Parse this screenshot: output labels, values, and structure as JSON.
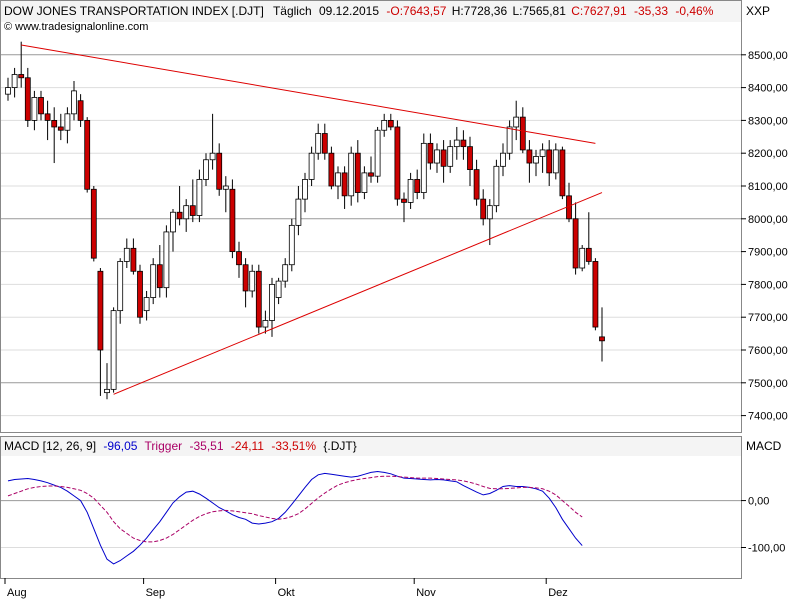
{
  "header": {
    "title": "DOW JONES TRANSPORTATION INDEX [.DJT]",
    "period": "Täglich",
    "date": "09.12.2015",
    "open": "-O:7643,57",
    "high": "H:7728,36",
    "low": "L:7565,81",
    "close": "C:7627,91",
    "change": "-35,33",
    "change_pct": "-0,46%",
    "right_label": "XXP",
    "watermark": "© www.tradesignalonline.com"
  },
  "macd_header": {
    "name": "MACD [12, 26, 9]",
    "macd_value": "-96,05",
    "trigger_label": "Trigger",
    "trigger_value": "-35,51",
    "diff": "-24,11",
    "diff_pct": "-33,51%",
    "symbol": "{.DJT}",
    "right_label": "MACD"
  },
  "colors": {
    "up": "#ffffff",
    "down": "#cc0000",
    "wick": "#000000",
    "trend": "#dd0000",
    "macd": "#0000cc",
    "trigger": "#aa0066",
    "negative": "#cc0000",
    "grid": "#cccccc"
  },
  "chart_data": [
    {
      "type": "candlestick",
      "title": "DOW JONES TRANSPORTATION INDEX [.DJT]",
      "ylim": [
        7350,
        8600
      ],
      "yticks": [
        "8500,00",
        "8400,00",
        "8300,00",
        "8200,00",
        "8100,00",
        "8000,00",
        "7900,00",
        "7800,00",
        "7700,00",
        "7600,00",
        "7500,00",
        "7400,00"
      ],
      "ytick_values": [
        8500,
        8400,
        8300,
        8200,
        8100,
        8000,
        7900,
        7800,
        7700,
        7600,
        7500,
        7400
      ],
      "xticks": [
        "Aug",
        "Sep",
        "Okt",
        "Nov",
        "Dez"
      ],
      "xtick_index": [
        0,
        21,
        41,
        62,
        82
      ],
      "candles": [
        {
          "o": 8380,
          "h": 8430,
          "l": 8360,
          "c": 8400
        },
        {
          "o": 8400,
          "h": 8460,
          "l": 8370,
          "c": 8440
        },
        {
          "o": 8440,
          "h": 8540,
          "l": 8400,
          "c": 8430
        },
        {
          "o": 8430,
          "h": 8460,
          "l": 8280,
          "c": 8300
        },
        {
          "o": 8300,
          "h": 8390,
          "l": 8270,
          "c": 8370
        },
        {
          "o": 8370,
          "h": 8390,
          "l": 8300,
          "c": 8320
        },
        {
          "o": 8320,
          "h": 8360,
          "l": 8240,
          "c": 8300
        },
        {
          "o": 8300,
          "h": 8340,
          "l": 8170,
          "c": 8280
        },
        {
          "o": 8280,
          "h": 8320,
          "l": 8240,
          "c": 8270
        },
        {
          "o": 8270,
          "h": 8340,
          "l": 8230,
          "c": 8320
        },
        {
          "o": 8320,
          "h": 8420,
          "l": 8300,
          "c": 8390
        },
        {
          "o": 8360,
          "h": 8380,
          "l": 8280,
          "c": 8300
        },
        {
          "o": 8300,
          "h": 8310,
          "l": 8080,
          "c": 8090
        },
        {
          "o": 8090,
          "h": 8100,
          "l": 7870,
          "c": 7880
        },
        {
          "o": 7840,
          "h": 7850,
          "l": 7460,
          "c": 7600
        },
        {
          "o": 7470,
          "h": 7560,
          "l": 7450,
          "c": 7480
        },
        {
          "o": 7480,
          "h": 7730,
          "l": 7470,
          "c": 7720
        },
        {
          "o": 7720,
          "h": 7880,
          "l": 7680,
          "c": 7870
        },
        {
          "o": 7870,
          "h": 7940,
          "l": 7850,
          "c": 7910
        },
        {
          "o": 7910,
          "h": 7940,
          "l": 7830,
          "c": 7840
        },
        {
          "o": 7840,
          "h": 7860,
          "l": 7680,
          "c": 7700
        },
        {
          "o": 7720,
          "h": 7780,
          "l": 7690,
          "c": 7760
        },
        {
          "o": 7760,
          "h": 7880,
          "l": 7740,
          "c": 7860
        },
        {
          "o": 7860,
          "h": 7920,
          "l": 7760,
          "c": 7790
        },
        {
          "o": 7790,
          "h": 7980,
          "l": 7760,
          "c": 7960
        },
        {
          "o": 7960,
          "h": 8030,
          "l": 7900,
          "c": 8020
        },
        {
          "o": 8020,
          "h": 8100,
          "l": 7980,
          "c": 8000
        },
        {
          "o": 8000,
          "h": 8060,
          "l": 7960,
          "c": 8040
        },
        {
          "o": 8040,
          "h": 8120,
          "l": 7990,
          "c": 8010
        },
        {
          "o": 8010,
          "h": 8150,
          "l": 7990,
          "c": 8120
        },
        {
          "o": 8120,
          "h": 8200,
          "l": 8100,
          "c": 8180
        },
        {
          "o": 8180,
          "h": 8320,
          "l": 8150,
          "c": 8200
        },
        {
          "o": 8200,
          "h": 8230,
          "l": 8070,
          "c": 8090
        },
        {
          "o": 8090,
          "h": 8130,
          "l": 8020,
          "c": 8100
        },
        {
          "o": 8090,
          "h": 8120,
          "l": 7880,
          "c": 7900
        },
        {
          "o": 7900,
          "h": 7930,
          "l": 7820,
          "c": 7860
        },
        {
          "o": 7860,
          "h": 7880,
          "l": 7730,
          "c": 7780
        },
        {
          "o": 7780,
          "h": 7860,
          "l": 7760,
          "c": 7840
        },
        {
          "o": 7840,
          "h": 7860,
          "l": 7650,
          "c": 7670
        },
        {
          "o": 7670,
          "h": 7720,
          "l": 7650,
          "c": 7690
        },
        {
          "o": 7690,
          "h": 7820,
          "l": 7640,
          "c": 7800
        },
        {
          "o": 7760,
          "h": 7820,
          "l": 7740,
          "c": 7810
        },
        {
          "o": 7810,
          "h": 7880,
          "l": 7790,
          "c": 7860
        },
        {
          "o": 7860,
          "h": 8000,
          "l": 7840,
          "c": 7980
        },
        {
          "o": 7980,
          "h": 8100,
          "l": 7950,
          "c": 8060
        },
        {
          "o": 8060,
          "h": 8140,
          "l": 8020,
          "c": 8120
        },
        {
          "o": 8120,
          "h": 8220,
          "l": 8100,
          "c": 8200
        },
        {
          "o": 8200,
          "h": 8290,
          "l": 8180,
          "c": 8260
        },
        {
          "o": 8260,
          "h": 8290,
          "l": 8180,
          "c": 8200
        },
        {
          "o": 8200,
          "h": 8220,
          "l": 8090,
          "c": 8100
        },
        {
          "o": 8100,
          "h": 8160,
          "l": 8060,
          "c": 8140
        },
        {
          "o": 8140,
          "h": 8160,
          "l": 8030,
          "c": 8070
        },
        {
          "o": 8070,
          "h": 8220,
          "l": 8040,
          "c": 8200
        },
        {
          "o": 8200,
          "h": 8240,
          "l": 8050,
          "c": 8080
        },
        {
          "o": 8080,
          "h": 8160,
          "l": 8060,
          "c": 8140
        },
        {
          "o": 8140,
          "h": 8190,
          "l": 8110,
          "c": 8130
        },
        {
          "o": 8130,
          "h": 8280,
          "l": 8110,
          "c": 8270
        },
        {
          "o": 8270,
          "h": 8320,
          "l": 8250,
          "c": 8300
        },
        {
          "o": 8300,
          "h": 8320,
          "l": 8270,
          "c": 8280
        },
        {
          "o": 8280,
          "h": 8300,
          "l": 8040,
          "c": 8060
        },
        {
          "o": 8060,
          "h": 8080,
          "l": 7990,
          "c": 8050
        },
        {
          "o": 8050,
          "h": 8140,
          "l": 8030,
          "c": 8120
        },
        {
          "o": 8120,
          "h": 8150,
          "l": 8060,
          "c": 8080
        },
        {
          "o": 8080,
          "h": 8260,
          "l": 8060,
          "c": 8230
        },
        {
          "o": 8230,
          "h": 8260,
          "l": 8150,
          "c": 8170
        },
        {
          "o": 8170,
          "h": 8230,
          "l": 8140,
          "c": 8210
        },
        {
          "o": 8210,
          "h": 8240,
          "l": 8110,
          "c": 8160
        },
        {
          "o": 8160,
          "h": 8240,
          "l": 8140,
          "c": 8220
        },
        {
          "o": 8220,
          "h": 8280,
          "l": 8180,
          "c": 8240
        },
        {
          "o": 8240,
          "h": 8270,
          "l": 8180,
          "c": 8220
        },
        {
          "o": 8220,
          "h": 8250,
          "l": 8100,
          "c": 8150
        },
        {
          "o": 8150,
          "h": 8180,
          "l": 8040,
          "c": 8060
        },
        {
          "o": 8060,
          "h": 8090,
          "l": 7980,
          "c": 8000
        },
        {
          "o": 8000,
          "h": 8060,
          "l": 7920,
          "c": 8040
        },
        {
          "o": 8040,
          "h": 8180,
          "l": 8020,
          "c": 8160
        },
        {
          "o": 8160,
          "h": 8230,
          "l": 8130,
          "c": 8200
        },
        {
          "o": 8200,
          "h": 8300,
          "l": 8180,
          "c": 8280
        },
        {
          "o": 8280,
          "h": 8360,
          "l": 8240,
          "c": 8310
        },
        {
          "o": 8310,
          "h": 8340,
          "l": 8200,
          "c": 8210
        },
        {
          "o": 8210,
          "h": 8240,
          "l": 8110,
          "c": 8170
        },
        {
          "o": 8170,
          "h": 8210,
          "l": 8130,
          "c": 8190
        },
        {
          "o": 8190,
          "h": 8230,
          "l": 8140,
          "c": 8210
        },
        {
          "o": 8210,
          "h": 8240,
          "l": 8100,
          "c": 8140
        },
        {
          "o": 8140,
          "h": 8230,
          "l": 8120,
          "c": 8210
        },
        {
          "o": 8210,
          "h": 8220,
          "l": 8060,
          "c": 8070
        },
        {
          "o": 8070,
          "h": 8110,
          "l": 7990,
          "c": 8000
        },
        {
          "o": 8000,
          "h": 8050,
          "l": 7830,
          "c": 7850
        },
        {
          "o": 7850,
          "h": 7920,
          "l": 7840,
          "c": 7910
        },
        {
          "o": 7910,
          "h": 8020,
          "l": 7860,
          "c": 7870
        },
        {
          "o": 7870,
          "h": 7880,
          "l": 7660,
          "c": 7670
        },
        {
          "o": 7640,
          "h": 7730,
          "l": 7565,
          "c": 7628
        }
      ],
      "trend_lines": [
        {
          "name": "upper-resistance",
          "from": {
            "i": 2,
            "v": 8530
          },
          "to": {
            "i": 89,
            "v": 8230
          }
        },
        {
          "name": "lower-support",
          "from": {
            "i": 16,
            "v": 7465
          },
          "to": {
            "i": 90,
            "v": 8080
          }
        }
      ]
    },
    {
      "type": "line",
      "title": "MACD [12, 26, 9]",
      "ylim": [
        -165,
        95
      ],
      "yticks": [
        "0,00",
        "-100,00"
      ],
      "ytick_values": [
        0,
        -100
      ],
      "series": [
        {
          "name": "MACD",
          "values": [
            42,
            45,
            46,
            47,
            45,
            42,
            38,
            33,
            28,
            20,
            10,
            0,
            -25,
            -60,
            -95,
            -125,
            -135,
            -128,
            -118,
            -108,
            -95,
            -80,
            -62,
            -45,
            -25,
            -5,
            8,
            18,
            20,
            14,
            5,
            -5,
            -15,
            -22,
            -30,
            -36,
            -40,
            -48,
            -50,
            -48,
            -45,
            -38,
            -25,
            -8,
            10,
            28,
            45,
            55,
            58,
            56,
            54,
            52,
            50,
            52,
            56,
            60,
            62,
            60,
            57,
            52,
            48,
            47,
            46,
            45,
            44,
            45,
            44,
            42,
            40,
            32,
            25,
            18,
            12,
            15,
            22,
            30,
            32,
            30,
            30,
            28,
            25,
            20,
            5,
            -15,
            -40,
            -60,
            -80,
            -96
          ]
        },
        {
          "name": "Trigger",
          "values": [
            10,
            15,
            20,
            25,
            28,
            30,
            31,
            31,
            30,
            28,
            25,
            22,
            15,
            5,
            -10,
            -25,
            -45,
            -60,
            -70,
            -80,
            -85,
            -88,
            -88,
            -85,
            -80,
            -72,
            -62,
            -52,
            -42,
            -34,
            -28,
            -24,
            -22,
            -21,
            -22,
            -24,
            -26,
            -28,
            -32,
            -35,
            -38,
            -40,
            -38,
            -34,
            -28,
            -18,
            -6,
            6,
            16,
            25,
            33,
            38,
            42,
            45,
            47,
            49,
            51,
            52,
            52,
            51,
            50,
            49,
            48,
            48,
            48,
            47,
            46,
            45,
            44,
            42,
            39,
            35,
            30,
            26,
            25,
            25,
            26,
            27,
            28,
            28,
            27,
            25,
            20,
            12,
            0,
            -12,
            -25,
            -35
          ]
        }
      ]
    }
  ]
}
